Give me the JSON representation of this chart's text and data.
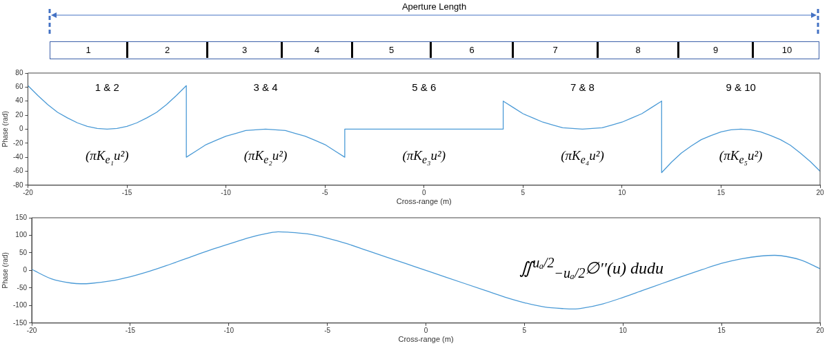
{
  "chart_data": [
    {
      "type": "other",
      "title": "Aperture Length",
      "annotations": [
        "1",
        "2",
        "3",
        "4",
        "5",
        "6",
        "7",
        "8",
        "9",
        "10"
      ]
    },
    {
      "type": "line",
      "xlabel": "Cross-range (m)",
      "ylabel": "Phase (rad)",
      "xlim": [
        -20,
        20
      ],
      "xticks": [
        -20,
        -15,
        -10,
        -5,
        0,
        5,
        10,
        15,
        20
      ],
      "ylim": [
        -80,
        80
      ],
      "yticks": [
        -80,
        -60,
        -40,
        -20,
        0,
        20,
        40,
        60,
        80
      ],
      "grid": false,
      "legend": false,
      "marker": "none",
      "line_style": "solid",
      "series": [
        {
          "color": "#4a9ad6",
          "x": [
            -20,
            -19.5,
            -19,
            -18.5,
            -18,
            -17.5,
            -17,
            -16.5,
            -16,
            -15.5,
            -15,
            -14.5,
            -14,
            -13.5,
            -13,
            -12.5,
            -12,
            -12,
            -11.5,
            -11,
            -10.5,
            -10,
            -9.5,
            -9,
            -8.5,
            -8,
            -7.5,
            -7,
            -6.5,
            -6,
            -5.5,
            -5,
            -4.5,
            -4,
            -4,
            4,
            4,
            4.5,
            5,
            5.5,
            6,
            6.5,
            7,
            7.5,
            8,
            8.5,
            9,
            9.5,
            10,
            10.5,
            11,
            11.5,
            12,
            12,
            12.5,
            13,
            13.5,
            14,
            14.5,
            15,
            15.5,
            16,
            16.5,
            17,
            17.5,
            18,
            18.5,
            19,
            19.5,
            20
          ],
          "values": [
            62,
            48,
            35,
            24,
            16,
            9,
            4,
            1,
            0,
            1,
            4,
            9,
            16,
            24,
            35,
            48,
            62,
            -40,
            -31,
            -22,
            -16,
            -10,
            -6,
            -2,
            -1,
            0,
            -1,
            -2,
            -6,
            -10,
            -16,
            -22,
            -31,
            -40,
            0,
            0,
            40,
            31,
            22,
            16,
            10,
            6,
            2,
            1,
            0,
            1,
            2,
            6,
            10,
            16,
            22,
            31,
            40,
            -62,
            -47,
            -34,
            -24,
            -15,
            -9,
            -4,
            -1,
            0,
            -1,
            -4,
            -9,
            -15,
            -23,
            -34,
            -46,
            -60
          ]
        }
      ],
      "annotations": [
        "1 & 2",
        "3 & 4",
        "5 & 6",
        "7 & 8",
        "9 & 10",
        "(πK$_{e₁}$u²)",
        "(πK$_{e₂}$u²)",
        "(πK$_{e₃}$u²)",
        "(πK$_{e₄}$u²)",
        "(πK$_{e₅}$u²)"
      ]
    },
    {
      "type": "line",
      "xlabel": "Cross-range (m)",
      "ylabel": "Phase (rad)",
      "xlim": [
        -20,
        20
      ],
      "xticks": [
        -20,
        -15,
        -10,
        -5,
        0,
        5,
        10,
        15,
        20
      ],
      "ylim": [
        -150,
        150
      ],
      "yticks": [
        -150,
        -100,
        -50,
        0,
        50,
        100,
        150
      ],
      "grid": false,
      "legend": false,
      "marker": "none",
      "line_style": "solid",
      "series": [
        {
          "color": "#4a9ad6",
          "x": [
            -20,
            -19,
            -18,
            -17.5,
            -17,
            -16,
            -15,
            -14,
            -13,
            -12,
            -11,
            -10,
            -9,
            -8,
            -7.5,
            -7,
            -6,
            -5,
            -4,
            -3,
            -2,
            -1,
            0,
            1,
            2,
            3,
            4,
            5,
            6,
            7,
            7.5,
            8,
            9,
            10,
            11,
            12,
            13,
            14,
            15,
            16,
            17,
            17.7,
            18,
            19,
            20
          ],
          "values": [
            3,
            -24,
            -36,
            -38,
            -37,
            -30,
            -18,
            -2,
            17,
            37,
            57,
            75,
            93,
            106,
            110,
            109,
            104,
            92,
            76,
            57,
            38,
            19,
            0,
            -19,
            -38,
            -57,
            -76,
            -92,
            -104,
            -109,
            -110,
            -107,
            -95,
            -77,
            -57,
            -37,
            -17,
            2,
            20,
            33,
            41,
            43,
            42,
            30,
            5
          ]
        }
      ],
      "annotations": [
        "∬$^{uₐ/2}$$_{−uₐ/2}$∅′′(u) dudu"
      ]
    }
  ]
}
